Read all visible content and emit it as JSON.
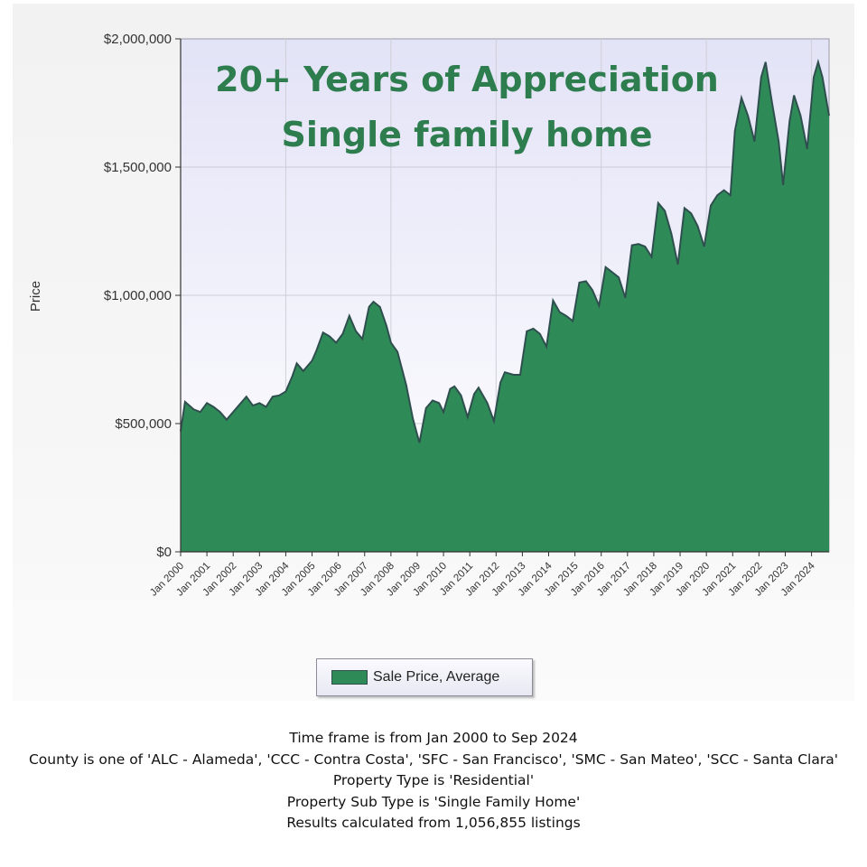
{
  "chart_data": {
    "type": "area",
    "overlay_title": [
      "20+ Years of Appreciation",
      "Single family home"
    ],
    "ylabel": "Price",
    "ylim": [
      0,
      2000000
    ],
    "y_ticks": [
      "$0",
      "$500,000",
      "$1,000,000",
      "$1,500,000",
      "$2,000,000"
    ],
    "x_ticks": [
      "Jan 2000",
      "Jan 2001",
      "Jan 2002",
      "Jan 2003",
      "Jan 2004",
      "Jan 2005",
      "Jan 2006",
      "Jan 2007",
      "Jan 2008",
      "Jan 2009",
      "Jan 2010",
      "Jan 2011",
      "Jan 2012",
      "Jan 2013",
      "Jan 2014",
      "Jan 2015",
      "Jan 2016",
      "Jan 2017",
      "Jan 2018",
      "Jan 2019",
      "Jan 2020",
      "Jan 2021",
      "Jan 2022",
      "Jan 2023",
      "Jan 2024"
    ],
    "grid": true,
    "legend_position": "bottom",
    "series": [
      {
        "name": "Sale Price, Average",
        "color": "#2e8b57",
        "points": [
          [
            "2000-01",
            470000
          ],
          [
            "2000-03",
            585000
          ],
          [
            "2000-07",
            555000
          ],
          [
            "2000-10",
            545000
          ],
          [
            "2001-01",
            580000
          ],
          [
            "2001-04",
            565000
          ],
          [
            "2001-07",
            545000
          ],
          [
            "2001-10",
            515000
          ],
          [
            "2002-01",
            545000
          ],
          [
            "2002-04",
            575000
          ],
          [
            "2002-07",
            605000
          ],
          [
            "2002-10",
            570000
          ],
          [
            "2003-01",
            580000
          ],
          [
            "2003-04",
            565000
          ],
          [
            "2003-07",
            605000
          ],
          [
            "2003-10",
            610000
          ],
          [
            "2004-01",
            625000
          ],
          [
            "2004-04",
            685000
          ],
          [
            "2004-06",
            735000
          ],
          [
            "2004-09",
            705000
          ],
          [
            "2005-01",
            745000
          ],
          [
            "2005-03",
            785000
          ],
          [
            "2005-06",
            855000
          ],
          [
            "2005-09",
            840000
          ],
          [
            "2005-12",
            815000
          ],
          [
            "2006-03",
            850000
          ],
          [
            "2006-06",
            920000
          ],
          [
            "2006-09",
            860000
          ],
          [
            "2006-12",
            830000
          ],
          [
            "2007-03",
            955000
          ],
          [
            "2007-05",
            975000
          ],
          [
            "2007-08",
            955000
          ],
          [
            "2007-11",
            880000
          ],
          [
            "2008-01",
            815000
          ],
          [
            "2008-04",
            780000
          ],
          [
            "2008-08",
            650000
          ],
          [
            "2008-11",
            520000
          ],
          [
            "2009-02",
            425000
          ],
          [
            "2009-05",
            560000
          ],
          [
            "2009-08",
            590000
          ],
          [
            "2009-11",
            580000
          ],
          [
            "2010-01",
            545000
          ],
          [
            "2010-04",
            635000
          ],
          [
            "2010-06",
            645000
          ],
          [
            "2010-09",
            610000
          ],
          [
            "2010-12",
            525000
          ],
          [
            "2011-03",
            615000
          ],
          [
            "2011-05",
            640000
          ],
          [
            "2011-09",
            580000
          ],
          [
            "2011-12",
            510000
          ],
          [
            "2012-03",
            660000
          ],
          [
            "2012-05",
            700000
          ],
          [
            "2012-09",
            690000
          ],
          [
            "2012-12",
            690000
          ],
          [
            "2013-03",
            860000
          ],
          [
            "2013-06",
            870000
          ],
          [
            "2013-09",
            850000
          ],
          [
            "2013-12",
            800000
          ],
          [
            "2014-03",
            980000
          ],
          [
            "2014-06",
            935000
          ],
          [
            "2014-09",
            920000
          ],
          [
            "2014-12",
            900000
          ],
          [
            "2015-03",
            1050000
          ],
          [
            "2015-06",
            1055000
          ],
          [
            "2015-09",
            1020000
          ],
          [
            "2015-12",
            960000
          ],
          [
            "2016-03",
            1110000
          ],
          [
            "2016-06",
            1090000
          ],
          [
            "2016-09",
            1070000
          ],
          [
            "2016-12",
            990000
          ],
          [
            "2017-03",
            1195000
          ],
          [
            "2017-06",
            1200000
          ],
          [
            "2017-09",
            1190000
          ],
          [
            "2017-12",
            1150000
          ],
          [
            "2018-03",
            1360000
          ],
          [
            "2018-06",
            1330000
          ],
          [
            "2018-09",
            1240000
          ],
          [
            "2018-12",
            1120000
          ],
          [
            "2019-03",
            1340000
          ],
          [
            "2019-06",
            1320000
          ],
          [
            "2019-09",
            1270000
          ],
          [
            "2019-12",
            1190000
          ],
          [
            "2020-03",
            1350000
          ],
          [
            "2020-06",
            1390000
          ],
          [
            "2020-09",
            1410000
          ],
          [
            "2020-12",
            1390000
          ],
          [
            "2021-02",
            1640000
          ],
          [
            "2021-05",
            1770000
          ],
          [
            "2021-08",
            1700000
          ],
          [
            "2021-11",
            1600000
          ],
          [
            "2022-02",
            1850000
          ],
          [
            "2022-04",
            1910000
          ],
          [
            "2022-07",
            1750000
          ],
          [
            "2022-10",
            1600000
          ],
          [
            "2022-12",
            1430000
          ],
          [
            "2023-03",
            1680000
          ],
          [
            "2023-05",
            1780000
          ],
          [
            "2023-08",
            1700000
          ],
          [
            "2023-11",
            1570000
          ],
          [
            "2024-02",
            1850000
          ],
          [
            "2024-04",
            1910000
          ],
          [
            "2024-06",
            1850000
          ],
          [
            "2024-09",
            1700000
          ]
        ]
      }
    ]
  },
  "notes": [
    "Time frame is from Jan 2000 to Sep 2024",
    "County is one of 'ALC - Alameda', 'CCC - Contra Costa', 'SFC - San Francisco', 'SMC - San Mateo', 'SCC - Santa Clara'",
    "Property Type is 'Residential'",
    "Property Sub Type is 'Single Family Home'",
    "Results calculated from 1,056,855 listings"
  ]
}
